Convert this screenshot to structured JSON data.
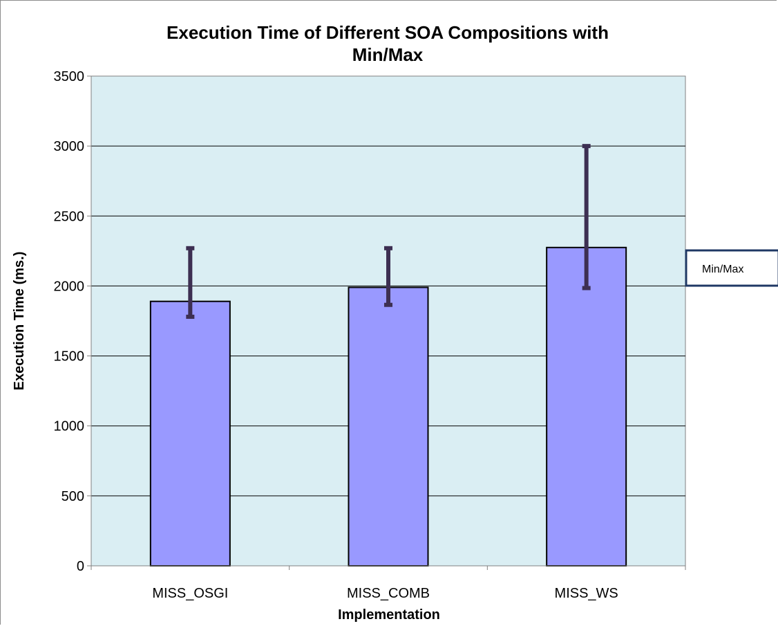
{
  "chart_data": {
    "type": "bar",
    "title_line1": "Execution Time of Different SOA Compositions with",
    "title_line2": "Min/Max",
    "xlabel": "Implementation",
    "ylabel": "Execution Time (ms.)",
    "categories": [
      "MISS_OSGI",
      "MISS_COMB",
      "MISS_WS"
    ],
    "values": [
      1890,
      1990,
      2275
    ],
    "error_min": [
      1780,
      1865,
      1985
    ],
    "error_max": [
      2270,
      2270,
      3000
    ],
    "ylim": [
      0,
      3500
    ],
    "yticks": [
      0,
      500,
      1000,
      1500,
      2000,
      2500,
      3000,
      3500
    ],
    "yticklabels": [
      "0",
      "500",
      "1000",
      "1500",
      "2000",
      "2500",
      "3000",
      "3500"
    ],
    "grid": true,
    "legend": {
      "label": "Min/Max",
      "placement": "right"
    },
    "colors": {
      "plot_background": "#daeef3",
      "bar_fill": "#9999ff",
      "bar_stroke": "#000000",
      "error_bar": "#3d2f52",
      "legend_border": "#1f3864",
      "gridline": "#000000"
    }
  }
}
